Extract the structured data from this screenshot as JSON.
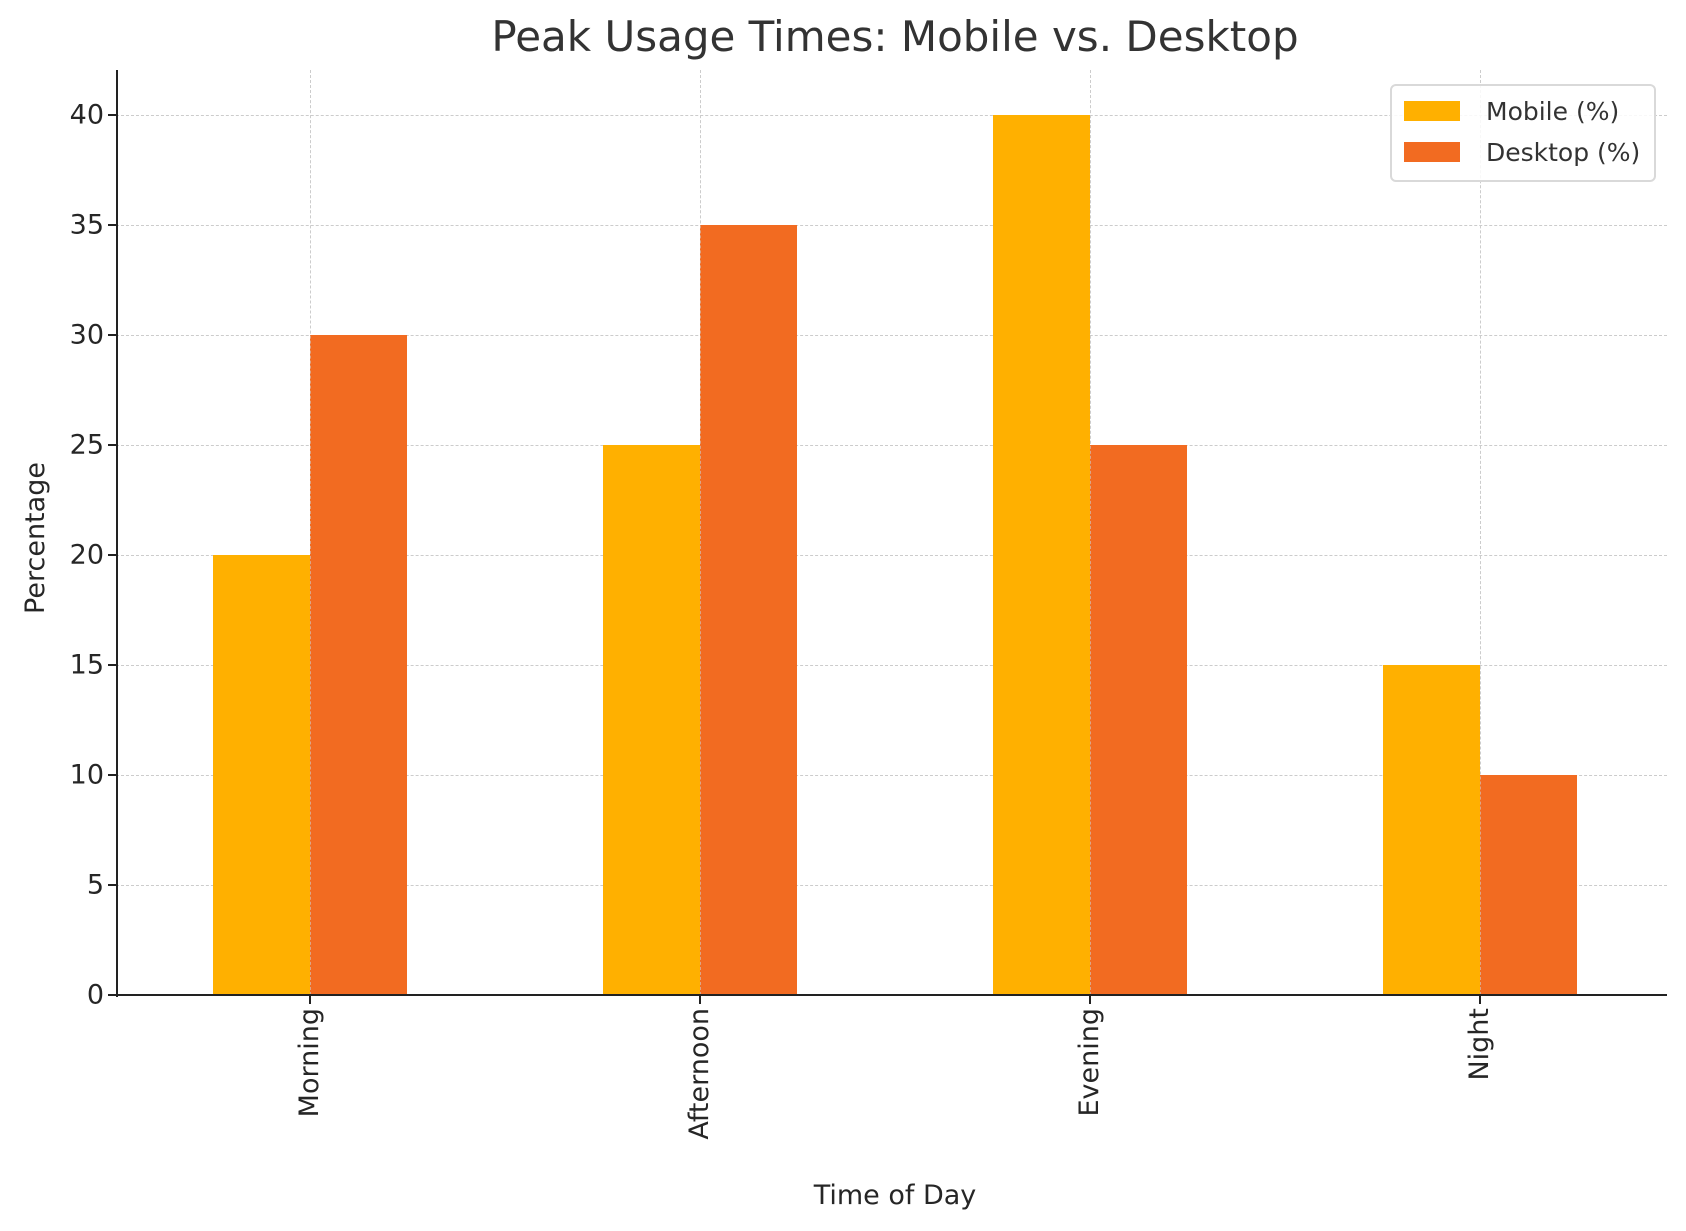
{
  "chart_data": {
    "type": "bar",
    "title": "Peak Usage Times: Mobile vs. Desktop",
    "xlabel": "Time of Day",
    "ylabel": "Percentage",
    "categories": [
      "Morning",
      "Afternoon",
      "Evening",
      "Night"
    ],
    "series": [
      {
        "name": "Mobile (%)",
        "color": "#FFB000",
        "values": [
          20,
          25,
          40,
          15
        ]
      },
      {
        "name": "Desktop (%)",
        "color": "#F26B21",
        "values": [
          30,
          35,
          25,
          10
        ]
      }
    ],
    "ylim": [
      0,
      42
    ],
    "yticks": [
      0,
      5,
      10,
      15,
      20,
      25,
      30,
      35,
      40
    ],
    "grid": true,
    "legend_position": "upper right"
  },
  "legend": {
    "items": [
      {
        "label": "Mobile (%)",
        "color": "#FFB000"
      },
      {
        "label": "Desktop (%)",
        "color": "#F26B21"
      }
    ]
  }
}
